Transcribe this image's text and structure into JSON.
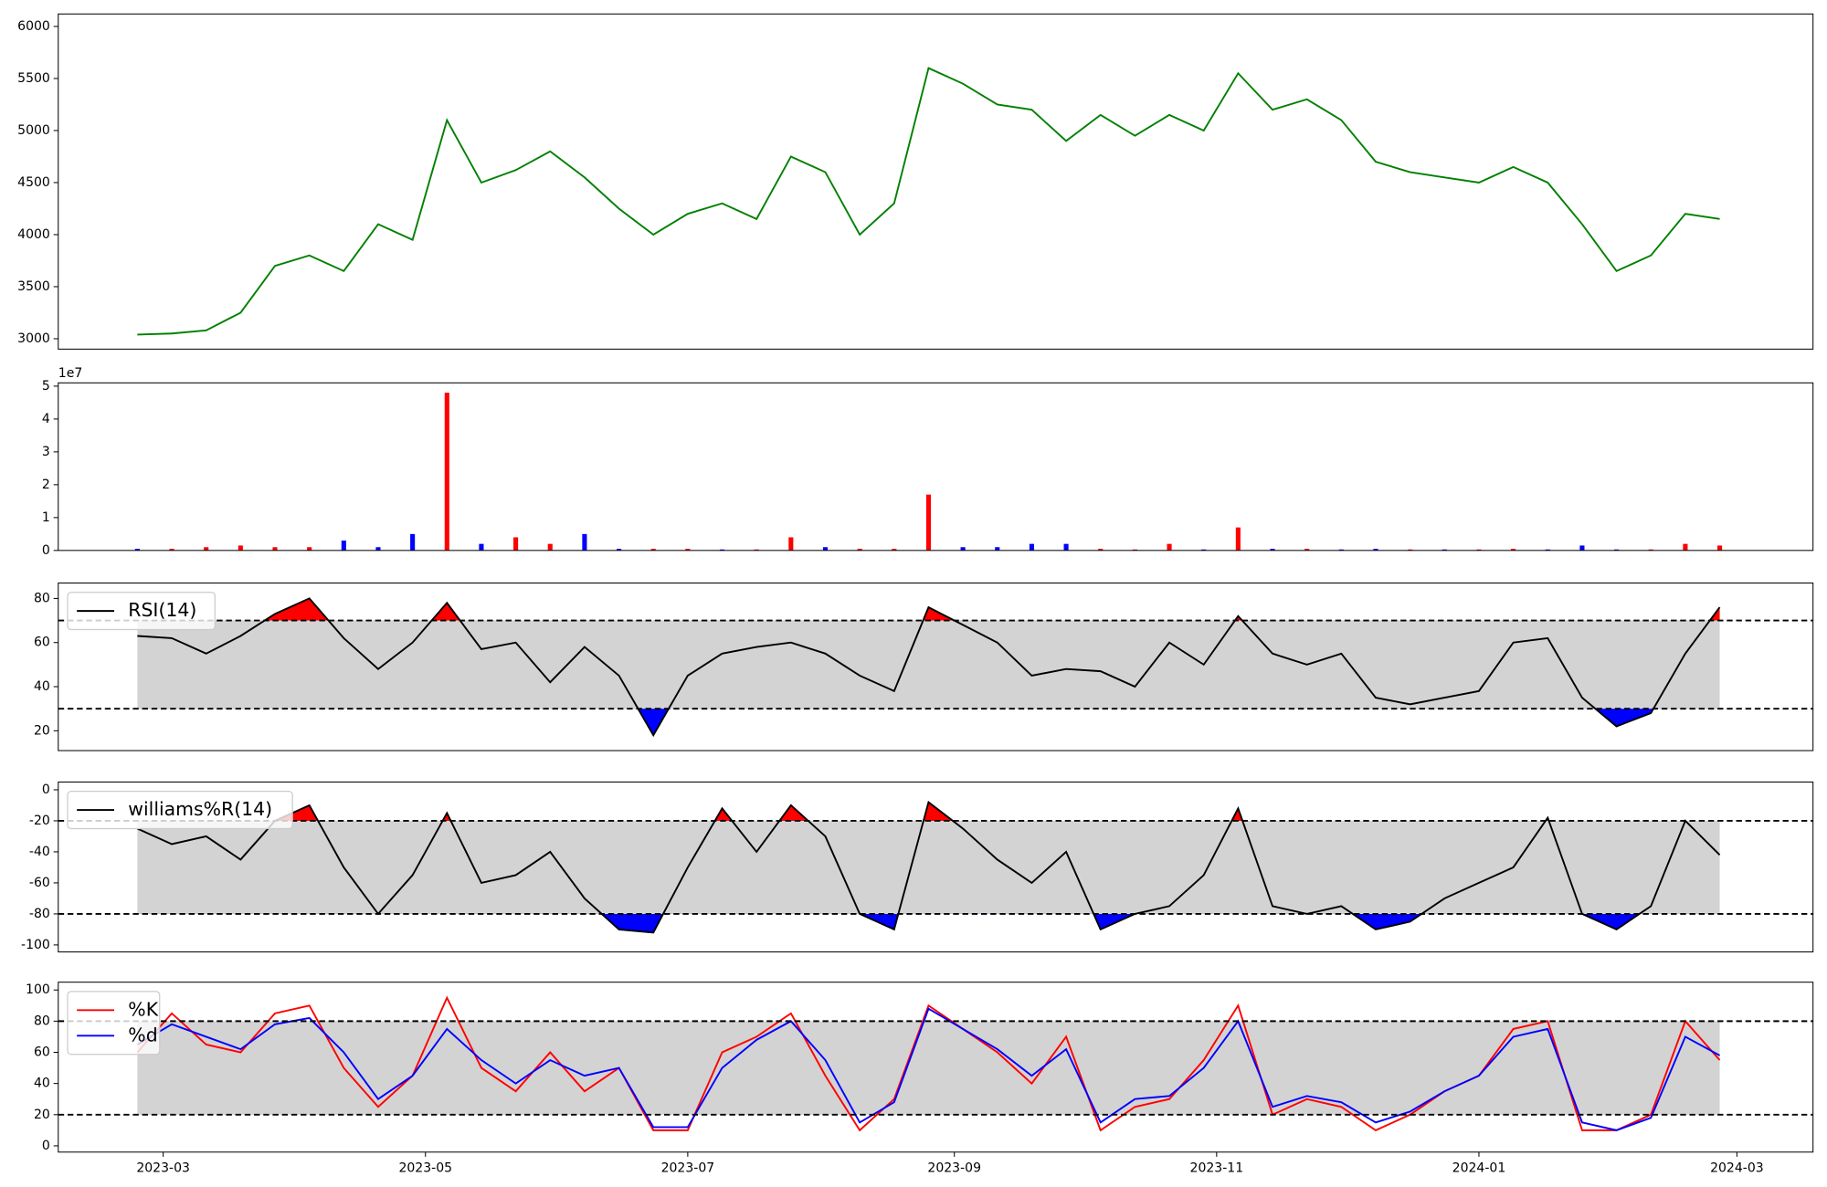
{
  "chart_data": [
    {
      "type": "line",
      "color": "green",
      "x": [
        22,
        30,
        38,
        46,
        54,
        62,
        70,
        78,
        86,
        94,
        102,
        110,
        118,
        126,
        134,
        142,
        150,
        158,
        166,
        174,
        182,
        190,
        198,
        206,
        214,
        222,
        230,
        238,
        246,
        254,
        262,
        270,
        278,
        286,
        294,
        302,
        310,
        318,
        326,
        334,
        342,
        350,
        358,
        366,
        374,
        382,
        390
      ],
      "values": [
        3040,
        3050,
        3080,
        3250,
        3700,
        3800,
        3650,
        4100,
        3950,
        5100,
        4500,
        4620,
        4800,
        4550,
        4250,
        4000,
        4200,
        4300,
        4150,
        4750,
        4600,
        4000,
        4300,
        5600,
        5450,
        5250,
        5200,
        4900,
        5150,
        4950,
        5150,
        5000,
        5550,
        5200,
        5300,
        5100,
        4700,
        4600,
        4550,
        4500,
        4650,
        4500,
        4100,
        3650,
        3800,
        4200,
        4150
      ],
      "xlim": [
        3.6,
        411.7
      ],
      "ylim": [
        2900,
        6120
      ],
      "yticks": [
        3000,
        3500,
        4000,
        4500,
        5000,
        5500,
        6000
      ]
    },
    {
      "type": "bar",
      "x": [
        22,
        30,
        38,
        46,
        54,
        62,
        70,
        78,
        86,
        94,
        102,
        110,
        118,
        126,
        134,
        142,
        150,
        158,
        166,
        174,
        182,
        190,
        198,
        206,
        214,
        222,
        230,
        238,
        246,
        254,
        262,
        270,
        278,
        286,
        294,
        302,
        310,
        318,
        326,
        334,
        342,
        350,
        358,
        366,
        374,
        382,
        390
      ],
      "values": [
        500000,
        500000,
        1000000,
        1500000,
        1000000,
        1000000,
        3000000,
        1000000,
        5000000,
        48000000,
        2000000,
        4000000,
        2000000,
        5000000,
        500000,
        500000,
        500000,
        300000,
        300000,
        4000000,
        1000000,
        500000,
        500000,
        17000000,
        1000000,
        1000000,
        2000000,
        2000000,
        500000,
        300000,
        2000000,
        300000,
        7000000,
        500000,
        500000,
        300000,
        500000,
        300000,
        300000,
        300000,
        500000,
        300000,
        1500000,
        300000,
        300000,
        2000000,
        1500000
      ],
      "colors": [
        "blue",
        "red",
        "red",
        "red",
        "red",
        "red",
        "blue",
        "blue",
        "blue",
        "red",
        "blue",
        "red",
        "red",
        "blue",
        "blue",
        "red",
        "red",
        "blue",
        "red",
        "red",
        "blue",
        "red",
        "red",
        "red",
        "blue",
        "blue",
        "blue",
        "blue",
        "red",
        "red",
        "red",
        "blue",
        "red",
        "blue",
        "red",
        "blue",
        "blue",
        "red",
        "blue",
        "red",
        "red",
        "blue",
        "blue",
        "blue",
        "red",
        "red",
        "red"
      ],
      "xlim": [
        3.6,
        411.7
      ],
      "ylim": [
        0,
        51000000
      ],
      "yticks": [
        0,
        {
          "value": 10000000,
          "label": "1"
        },
        {
          "value": 20000000,
          "label": "2"
        },
        {
          "value": 30000000,
          "label": "3"
        },
        {
          "value": 40000000,
          "label": "4"
        },
        {
          "value": 50000000,
          "label": "5"
        }
      ],
      "offset_label": "1e7"
    },
    {
      "type": "line",
      "legend": "upper left",
      "x": [
        22,
        30,
        38,
        46,
        54,
        62,
        70,
        78,
        86,
        94,
        102,
        110,
        118,
        126,
        134,
        142,
        150,
        158,
        166,
        174,
        182,
        190,
        198,
        206,
        214,
        222,
        230,
        238,
        246,
        254,
        262,
        270,
        278,
        286,
        294,
        302,
        310,
        318,
        326,
        334,
        342,
        350,
        358,
        366,
        374,
        382,
        390
      ],
      "series": [
        {
          "name": "RSI(14)",
          "color": "black",
          "values": [
            63,
            62,
            55,
            63,
            73,
            80,
            62,
            48,
            60,
            78,
            57,
            60,
            42,
            58,
            45,
            18,
            45,
            55,
            58,
            60,
            55,
            45,
            38,
            76,
            68,
            60,
            45,
            48,
            47,
            40,
            60,
            50,
            72,
            55,
            50,
            55,
            35,
            32,
            35,
            38,
            60,
            62,
            35,
            22,
            28,
            55,
            76
          ]
        }
      ],
      "xlim": [
        3.6,
        411.7
      ],
      "ylim": [
        11,
        87
      ],
      "yticks": [
        20,
        40,
        60,
        80
      ],
      "thresholds": [
        30,
        70
      ],
      "band_color": "#d3d3d3",
      "overbought_color": "red",
      "oversold_color": "blue"
    },
    {
      "type": "line",
      "legend": "upper left",
      "x": [
        22,
        30,
        38,
        46,
        54,
        62,
        70,
        78,
        86,
        94,
        102,
        110,
        118,
        126,
        134,
        142,
        150,
        158,
        166,
        174,
        182,
        190,
        198,
        206,
        214,
        222,
        230,
        238,
        246,
        254,
        262,
        270,
        278,
        286,
        294,
        302,
        310,
        318,
        326,
        334,
        342,
        350,
        358,
        366,
        374,
        382,
        390
      ],
      "series": [
        {
          "name": "williams%R(14)",
          "color": "black",
          "values": [
            -25,
            -35,
            -30,
            -45,
            -20,
            -10,
            -50,
            -80,
            -55,
            -15,
            -60,
            -55,
            -40,
            -70,
            -90,
            -92,
            -50,
            -12,
            -40,
            -10,
            -30,
            -80,
            -90,
            -8,
            -25,
            -45,
            -60,
            -40,
            -90,
            -80,
            -75,
            -55,
            -12,
            -75,
            -80,
            -75,
            -90,
            -85,
            -70,
            -60,
            -50,
            -18,
            -80,
            -90,
            -75,
            -20,
            -42
          ]
        }
      ],
      "xlim": [
        3.6,
        411.7
      ],
      "ylim": [
        -104.5,
        5
      ],
      "yticks": [
        -100,
        -80,
        -60,
        -40,
        -20,
        0
      ],
      "thresholds": [
        -80,
        -20
      ],
      "band_color": "#d3d3d3",
      "overbought_color": "red",
      "oversold_color": "blue"
    },
    {
      "type": "line",
      "legend": "upper left",
      "x": [
        22,
        30,
        38,
        46,
        54,
        62,
        70,
        78,
        86,
        94,
        102,
        110,
        118,
        126,
        134,
        142,
        150,
        158,
        166,
        174,
        182,
        190,
        198,
        206,
        214,
        222,
        230,
        238,
        246,
        254,
        262,
        270,
        278,
        286,
        294,
        302,
        310,
        318,
        326,
        334,
        342,
        350,
        358,
        366,
        374,
        382,
        390
      ],
      "series": [
        {
          "name": "%K",
          "color": "red",
          "values": [
            60,
            85,
            65,
            60,
            85,
            90,
            50,
            25,
            45,
            95,
            50,
            35,
            60,
            35,
            50,
            10,
            10,
            60,
            70,
            85,
            45,
            10,
            30,
            90,
            75,
            60,
            40,
            70,
            10,
            25,
            30,
            55,
            90,
            20,
            30,
            25,
            10,
            20,
            35,
            45,
            75,
            80,
            10,
            10,
            20,
            80,
            55
          ]
        },
        {
          "name": "%d",
          "color": "blue",
          "values": [
            65,
            78,
            70,
            62,
            78,
            82,
            60,
            30,
            45,
            75,
            55,
            40,
            55,
            45,
            50,
            12,
            12,
            50,
            68,
            80,
            55,
            15,
            28,
            88,
            75,
            62,
            45,
            62,
            15,
            30,
            32,
            50,
            80,
            25,
            32,
            28,
            15,
            22,
            35,
            45,
            70,
            75,
            15,
            10,
            18,
            70,
            58
          ]
        }
      ],
      "xlim": [
        3.6,
        411.7
      ],
      "ylim": [
        -4,
        105
      ],
      "yticks": [
        0,
        20,
        40,
        60,
        80,
        100
      ],
      "thresholds": [
        20,
        80
      ],
      "band_color": "#d3d3d3",
      "xticks": [
        {
          "value": 28,
          "label": "2023-03"
        },
        {
          "value": 89,
          "label": "2023-05"
        },
        {
          "value": 150,
          "label": "2023-07"
        },
        {
          "value": 212,
          "label": "2023-09"
        },
        {
          "value": 273,
          "label": "2023-11"
        },
        {
          "value": 334,
          "label": "2024-01"
        },
        {
          "value": 394,
          "label": "2024-03"
        }
      ]
    }
  ]
}
